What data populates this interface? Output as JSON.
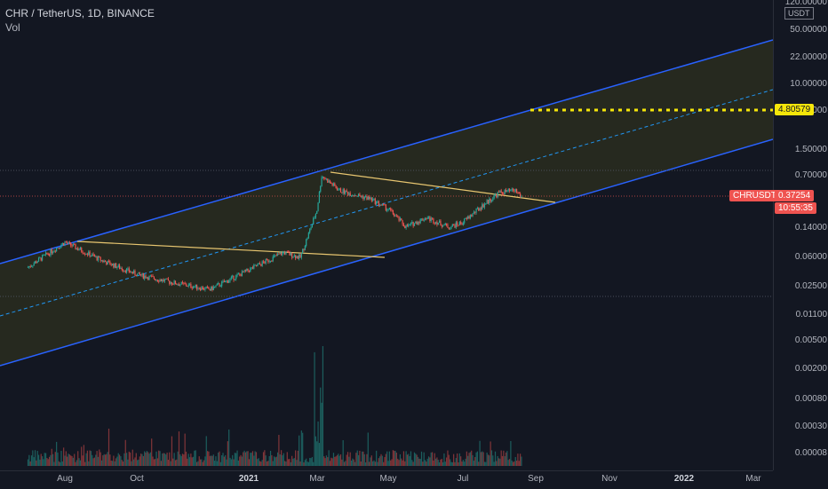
{
  "header": {
    "title": "CHR / TetherUS, 1D, BINANCE",
    "volume_label": "Vol"
  },
  "yaxis": {
    "currency": "USDT",
    "ticks": [
      "120.00000",
      "50.00000",
      "22.00000",
      "10.00000",
      "4.00000",
      "1.50000",
      "0.70000",
      "0.37254",
      "0.14000",
      "0.06000",
      "0.02500",
      "0.01100",
      "0.00500",
      "0.00200",
      "0.00080",
      "0.00030",
      "0.00008"
    ]
  },
  "xaxis": {
    "ticks": [
      {
        "label": "Aug",
        "bold": false
      },
      {
        "label": "Oct",
        "bold": false
      },
      {
        "label": "2021",
        "bold": true
      },
      {
        "label": "Mar",
        "bold": false
      },
      {
        "label": "May",
        "bold": false
      },
      {
        "label": "Jul",
        "bold": false
      },
      {
        "label": "Sep",
        "bold": false
      },
      {
        "label": "Nov",
        "bold": false
      },
      {
        "label": "2022",
        "bold": true
      },
      {
        "label": "Mar",
        "bold": false
      }
    ]
  },
  "price_tags": {
    "target_value": "4.80579",
    "symbol": "CHRUSDT",
    "last_price": "0.37254",
    "countdown": "10:55:35"
  },
  "colors": {
    "background": "#131722",
    "channel_line": "#2962ff",
    "channel_fill": "#2a2d1e",
    "midline": "#2196f3",
    "trendline": "#e8c670",
    "target_line": "#f5e60a",
    "up": "#26a69a",
    "down": "#ef5350"
  },
  "chart_data": {
    "type": "candlestick",
    "symbol": "CHR / TetherUS",
    "interval": "1D",
    "exchange": "BINANCE",
    "scale": "log",
    "ylim": [
      8e-05,
      120
    ],
    "last_price": 0.37254,
    "target_price": 4.80579,
    "price_path": [
      {
        "date": "2020-07-01",
        "close": 0.045
      },
      {
        "date": "2020-08-01",
        "close": 0.095
      },
      {
        "date": "2020-09-01",
        "close": 0.055
      },
      {
        "date": "2020-10-01",
        "close": 0.036
      },
      {
        "date": "2020-11-01",
        "close": 0.028
      },
      {
        "date": "2020-12-01",
        "close": 0.023
      },
      {
        "date": "2021-01-01",
        "close": 0.04
      },
      {
        "date": "2021-02-01",
        "close": 0.07
      },
      {
        "date": "2021-02-15",
        "close": 0.06
      },
      {
        "date": "2021-03-01",
        "close": 0.25
      },
      {
        "date": "2021-03-05",
        "close": 0.7
      },
      {
        "date": "2021-03-20",
        "close": 0.45
      },
      {
        "date": "2021-04-15",
        "close": 0.35
      },
      {
        "date": "2021-05-01",
        "close": 0.25
      },
      {
        "date": "2021-05-15",
        "close": 0.15
      },
      {
        "date": "2021-06-01",
        "close": 0.2
      },
      {
        "date": "2021-06-20",
        "close": 0.15
      },
      {
        "date": "2021-07-01",
        "close": 0.17
      },
      {
        "date": "2021-07-20",
        "close": 0.3
      },
      {
        "date": "2021-08-01",
        "close": 0.42
      },
      {
        "date": "2021-08-15",
        "close": 0.45
      },
      {
        "date": "2021-08-20",
        "close": 0.37254
      }
    ]
  }
}
